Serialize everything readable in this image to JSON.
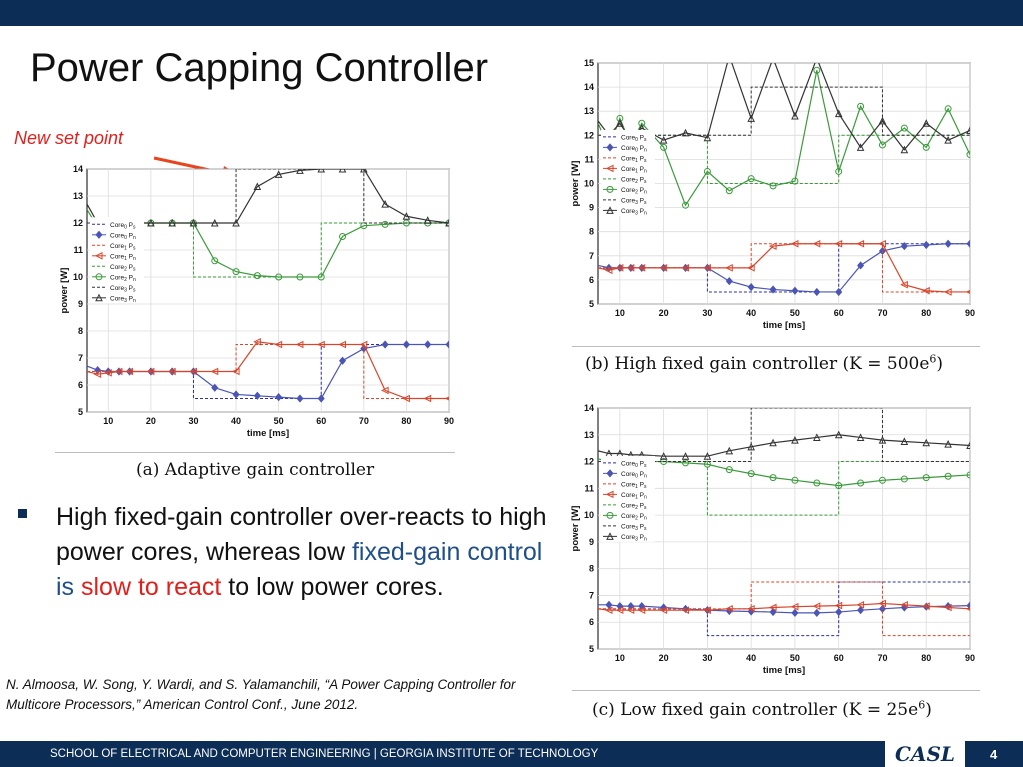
{
  "slide": {
    "title": "Power Capping Controller",
    "annotation": "New set point",
    "bullet": {
      "part1": "High fixed-gain controller over-reacts to high power cores, whereas low ",
      "part2": "fixed-gain control is ",
      "part3": "slow to react",
      "part4": " to low power cores."
    },
    "reference": "N. Almoosa, W. Song, Y. Wardi, and S. Yalamanchili, “A Power Capping Controller for Multicore Processors,” American Control Conf., June 2012.",
    "footer": "SCHOOL OF ELECTRICAL AND COMPUTER ENGINEERING | GEORGIA INSTITUTE OF TECHNOLOGY",
    "logo": "CASL",
    "page_number": "4",
    "colors": {
      "brand": "#0c2d55",
      "accent": "#e0201b",
      "blue_text": "#1f4f8a"
    }
  },
  "chart_data": [
    {
      "type": "line",
      "caption": "(a) Adaptive gain controller",
      "xlabel": "time [ms]",
      "ylabel": "power [W]",
      "xlim": [
        5,
        90
      ],
      "ylim": [
        5,
        14
      ],
      "xticks": [
        10,
        20,
        30,
        40,
        50,
        60,
        70,
        80,
        90
      ],
      "yticks": [
        5,
        6,
        7,
        8,
        9,
        10,
        11,
        12,
        13,
        14
      ],
      "grid": true,
      "legend": "left",
      "x": [
        5,
        7.5,
        10,
        12.5,
        15,
        20,
        25,
        30,
        35,
        40,
        45,
        50,
        55,
        60,
        65,
        70,
        75,
        80,
        85,
        90
      ],
      "series": [
        {
          "name": "Core0 Ps",
          "color": "#2b2fa3",
          "dash": true,
          "marker": "none",
          "values": [
            6.5,
            6.5,
            6.5,
            6.5,
            6.5,
            6.5,
            6.5,
            5.5,
            5.5,
            5.5,
            5.5,
            5.5,
            5.5,
            7.5,
            7.5,
            7.5,
            7.5,
            7.5,
            7.5,
            7.5
          ]
        },
        {
          "name": "Core0 Pn",
          "color": "#4a55b5",
          "dash": false,
          "marker": "diamond",
          "values": [
            6.7,
            6.55,
            6.5,
            6.5,
            6.5,
            6.5,
            6.5,
            6.5,
            5.9,
            5.65,
            5.6,
            5.55,
            5.5,
            5.5,
            6.9,
            7.35,
            7.5,
            7.5,
            7.5,
            7.5
          ]
        },
        {
          "name": "Core1 Ps",
          "color": "#d9452a",
          "dash": true,
          "marker": "none",
          "values": [
            6.5,
            6.5,
            6.5,
            6.5,
            6.5,
            6.5,
            6.5,
            6.5,
            6.5,
            7.5,
            7.5,
            7.5,
            7.5,
            7.5,
            7.5,
            5.5,
            5.5,
            5.5,
            5.5,
            5.5
          ]
        },
        {
          "name": "Core1 Pn",
          "color": "#d9452a",
          "dash": false,
          "marker": "triangle-left",
          "values": [
            6.5,
            6.4,
            6.45,
            6.5,
            6.5,
            6.5,
            6.5,
            6.5,
            6.5,
            6.5,
            7.6,
            7.5,
            7.5,
            7.5,
            7.5,
            7.5,
            5.8,
            5.5,
            5.5,
            5.5
          ]
        },
        {
          "name": "Core2 Ps",
          "color": "#3a9a3a",
          "dash": true,
          "marker": "none",
          "values": [
            12,
            12,
            12,
            12,
            12,
            12,
            12,
            10,
            10,
            10,
            10,
            10,
            10,
            12,
            12,
            12,
            12,
            12,
            12,
            12
          ]
        },
        {
          "name": "Core2 Pn",
          "color": "#3a9a3a",
          "dash": false,
          "marker": "circle",
          "values": [
            12.5,
            11.85,
            11.95,
            12,
            12,
            12,
            12,
            12,
            10.6,
            10.2,
            10.05,
            10,
            10,
            10,
            11.5,
            11.9,
            11.95,
            12,
            12,
            12
          ]
        },
        {
          "name": "Core3 Ps",
          "color": "#333333",
          "dash": true,
          "marker": "none",
          "values": [
            12,
            12,
            12,
            12,
            12,
            12,
            12,
            12,
            12,
            14,
            14,
            14,
            14,
            14,
            14,
            12,
            12,
            12,
            12,
            12
          ]
        },
        {
          "name": "Core3 Pn",
          "color": "#333333",
          "dash": false,
          "marker": "triangle-up",
          "values": [
            12.7,
            12,
            12,
            12,
            12,
            12,
            12,
            12,
            12,
            12,
            13.35,
            13.8,
            13.95,
            14,
            14,
            14,
            12.7,
            12.25,
            12.1,
            12
          ]
        }
      ]
    },
    {
      "type": "line",
      "caption": "(b) High fixed gain controller (K = 500e6)",
      "xlabel": "time [ms]",
      "ylabel": "power [W]",
      "xlim": [
        5,
        90
      ],
      "ylim": [
        5,
        15
      ],
      "xticks": [
        10,
        20,
        30,
        40,
        50,
        60,
        70,
        80,
        90
      ],
      "yticks": [
        5,
        6,
        7,
        8,
        9,
        10,
        11,
        12,
        13,
        14,
        15
      ],
      "grid": true,
      "legend": "left",
      "x": [
        5,
        7.5,
        10,
        12.5,
        15,
        20,
        25,
        30,
        35,
        40,
        45,
        50,
        55,
        60,
        65,
        70,
        75,
        80,
        85,
        90
      ],
      "series": [
        {
          "name": "Core0 Ps",
          "color": "#2b2fa3",
          "dash": true,
          "marker": "none",
          "values": [
            6.5,
            6.5,
            6.5,
            6.5,
            6.5,
            6.5,
            6.5,
            5.5,
            5.5,
            5.5,
            5.5,
            5.5,
            5.5,
            7.5,
            7.5,
            7.5,
            7.5,
            7.5,
            7.5,
            7.5
          ]
        },
        {
          "name": "Core0 Pn",
          "color": "#4a55b5",
          "dash": false,
          "marker": "diamond",
          "values": [
            6.6,
            6.5,
            6.5,
            6.5,
            6.5,
            6.5,
            6.5,
            6.5,
            5.95,
            5.7,
            5.6,
            5.55,
            5.5,
            5.5,
            6.6,
            7.2,
            7.4,
            7.45,
            7.5,
            7.5
          ]
        },
        {
          "name": "Core1 Ps",
          "color": "#d9452a",
          "dash": true,
          "marker": "none",
          "values": [
            6.5,
            6.5,
            6.5,
            6.5,
            6.5,
            6.5,
            6.5,
            6.5,
            6.5,
            7.5,
            7.5,
            7.5,
            7.5,
            7.5,
            7.5,
            5.5,
            5.5,
            5.5,
            5.5,
            5.5
          ]
        },
        {
          "name": "Core1 Pn",
          "color": "#d9452a",
          "dash": false,
          "marker": "triangle-left",
          "values": [
            6.5,
            6.4,
            6.5,
            6.5,
            6.5,
            6.5,
            6.5,
            6.5,
            6.5,
            6.5,
            7.4,
            7.5,
            7.5,
            7.5,
            7.5,
            7.5,
            5.8,
            5.55,
            5.5,
            5.5
          ]
        },
        {
          "name": "Core2 Ps",
          "color": "#3a9a3a",
          "dash": true,
          "marker": "none",
          "values": [
            12,
            12,
            12,
            12,
            12,
            12,
            12,
            10,
            10,
            10,
            10,
            10,
            10,
            12,
            12,
            12,
            12,
            12,
            12,
            12
          ]
        },
        {
          "name": "Core2 Pn",
          "color": "#3a9a3a",
          "dash": false,
          "marker": "circle",
          "values": [
            12.5,
            11.5,
            12.7,
            11.6,
            12.5,
            11.5,
            9.1,
            10.5,
            9.7,
            10.2,
            9.9,
            10.1,
            14.7,
            10.5,
            13.2,
            11.6,
            12.3,
            11.5,
            13.1,
            11.2
          ]
        },
        {
          "name": "Core3 Ps",
          "color": "#333333",
          "dash": true,
          "marker": "none",
          "values": [
            12,
            12,
            12,
            12,
            12,
            12,
            12,
            12,
            12,
            14,
            14,
            14,
            14,
            14,
            14,
            12,
            12,
            12,
            12,
            12
          ]
        },
        {
          "name": "Core3 Pn",
          "color": "#333333",
          "dash": false,
          "marker": "triangle-up",
          "values": [
            12.6,
            12,
            12.5,
            11.8,
            12.3,
            11.8,
            12.1,
            11.9,
            15.3,
            12.7,
            15.2,
            12.8,
            15.2,
            12.9,
            11.5,
            12.6,
            11.4,
            12.5,
            11.8,
            12.2
          ]
        }
      ]
    },
    {
      "type": "line",
      "caption": "(c) Low fixed gain controller (K = 25e6)",
      "xlabel": "time [ms]",
      "ylabel": "power [W]",
      "xlim": [
        5,
        90
      ],
      "ylim": [
        5,
        14
      ],
      "xticks": [
        10,
        20,
        30,
        40,
        50,
        60,
        70,
        80,
        90
      ],
      "yticks": [
        5,
        6,
        7,
        8,
        9,
        10,
        11,
        12,
        13,
        14
      ],
      "grid": true,
      "legend": "left",
      "x": [
        5,
        7.5,
        10,
        12.5,
        15,
        20,
        25,
        30,
        35,
        40,
        45,
        50,
        55,
        60,
        65,
        70,
        75,
        80,
        85,
        90
      ],
      "series": [
        {
          "name": "Core0 Ps",
          "color": "#2b2fa3",
          "dash": true,
          "marker": "none",
          "values": [
            6.5,
            6.5,
            6.5,
            6.5,
            6.5,
            6.5,
            6.5,
            5.5,
            5.5,
            5.5,
            5.5,
            5.5,
            5.5,
            7.5,
            7.5,
            7.5,
            7.5,
            7.5,
            7.5,
            7.5
          ]
        },
        {
          "name": "Core0 Pn",
          "color": "#4a55b5",
          "dash": false,
          "marker": "diamond",
          "values": [
            6.65,
            6.65,
            6.6,
            6.6,
            6.6,
            6.55,
            6.5,
            6.45,
            6.42,
            6.4,
            6.38,
            6.35,
            6.35,
            6.38,
            6.45,
            6.5,
            6.55,
            6.58,
            6.6,
            6.62
          ]
        },
        {
          "name": "Core1 Ps",
          "color": "#d9452a",
          "dash": true,
          "marker": "none",
          "values": [
            6.5,
            6.5,
            6.5,
            6.5,
            6.5,
            6.5,
            6.5,
            6.5,
            6.5,
            7.5,
            7.5,
            7.5,
            7.5,
            7.5,
            7.5,
            5.5,
            5.5,
            5.5,
            5.5,
            5.5
          ]
        },
        {
          "name": "Core1 Pn",
          "color": "#d9452a",
          "dash": false,
          "marker": "triangle-left",
          "values": [
            6.5,
            6.45,
            6.45,
            6.45,
            6.45,
            6.45,
            6.45,
            6.45,
            6.5,
            6.5,
            6.55,
            6.58,
            6.6,
            6.62,
            6.65,
            6.7,
            6.65,
            6.6,
            6.55,
            6.5
          ]
        },
        {
          "name": "Core2 Ps",
          "color": "#3a9a3a",
          "dash": true,
          "marker": "none",
          "values": [
            12,
            12,
            12,
            12,
            12,
            12,
            12,
            10,
            10,
            10,
            10,
            10,
            10,
            12,
            12,
            12,
            12,
            12,
            12,
            12
          ]
        },
        {
          "name": "Core2 Pn",
          "color": "#3a9a3a",
          "dash": false,
          "marker": "circle",
          "values": [
            12.1,
            12.0,
            12.0,
            12.0,
            12.0,
            12.0,
            11.95,
            11.9,
            11.7,
            11.55,
            11.4,
            11.3,
            11.2,
            11.1,
            11.2,
            11.3,
            11.35,
            11.4,
            11.45,
            11.5
          ]
        },
        {
          "name": "Core3 Ps",
          "color": "#333333",
          "dash": true,
          "marker": "none",
          "values": [
            12,
            12,
            12,
            12,
            12,
            12,
            12,
            12,
            12,
            14,
            14,
            14,
            14,
            14,
            14,
            12,
            12,
            12,
            12,
            12
          ]
        },
        {
          "name": "Core3 Pn",
          "color": "#333333",
          "dash": false,
          "marker": "triangle-up",
          "values": [
            12.4,
            12.3,
            12.3,
            12.25,
            12.25,
            12.2,
            12.2,
            12.2,
            12.4,
            12.55,
            12.7,
            12.8,
            12.9,
            13.0,
            12.9,
            12.8,
            12.75,
            12.7,
            12.65,
            12.6
          ]
        }
      ]
    }
  ]
}
